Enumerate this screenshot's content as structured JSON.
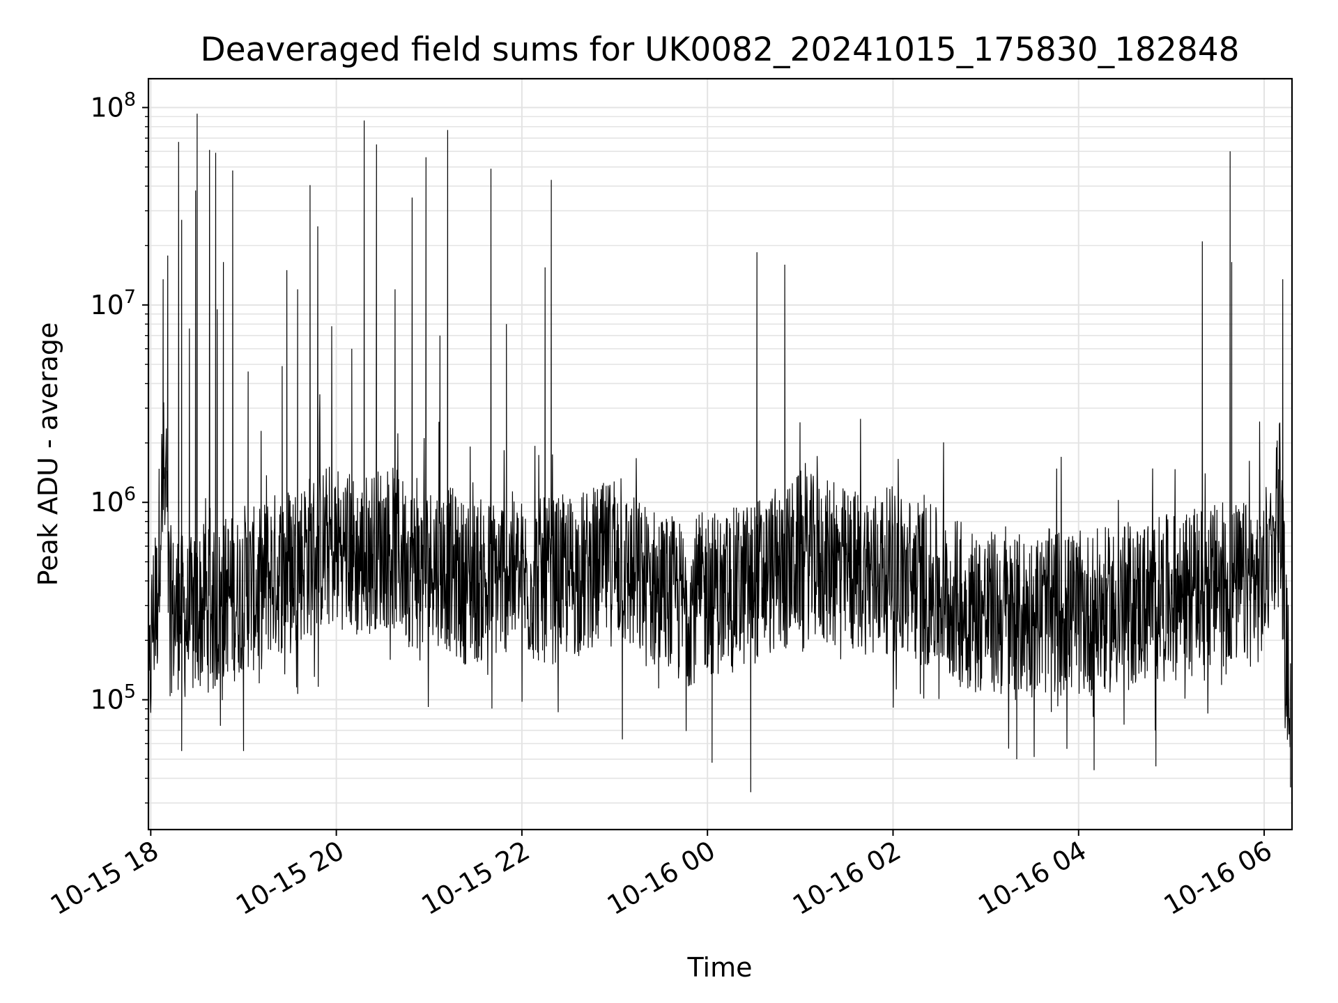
{
  "chart_data": {
    "type": "line",
    "title": "Deaveraged field sums for UK0082_20241015_175830_182848",
    "xlabel": "Time",
    "ylabel": "Peak ADU - average",
    "yscale": "log",
    "xlim": [
      "2024-10-15 17:58:30",
      "2024-10-16 06:18:00"
    ],
    "ylim": [
      22000,
      140000000
    ],
    "grid": true,
    "x_tick_labels": [
      "10-15 18",
      "10-15 20",
      "10-15 22",
      "10-16 00",
      "10-16 02",
      "10-16 04",
      "10-16 06"
    ],
    "y_tick_labels": [
      {
        "base": "10",
        "exp": "8"
      },
      {
        "base": "10",
        "exp": "7"
      },
      {
        "base": "10",
        "exp": "6"
      },
      {
        "base": "10",
        "exp": "5"
      }
    ],
    "line_color": "#000000",
    "series": [
      {
        "x": [
          "2024-10-15 17:58:30",
          "2024-10-15 18:01:00",
          "2024-10-15 18:04:00",
          "2024-10-15 18:06:00",
          "2024-10-15 18:08:00",
          "2024-10-15 18:10:00",
          "2024-10-15 18:12:00",
          "2024-10-15 18:14:00",
          "2024-10-15 18:16:00",
          "2024-10-15 18:17:00",
          "2024-10-15 18:18:00",
          "2024-10-15 18:20:00",
          "2024-10-15 18:24:00",
          "2024-10-15 18:28:00",
          "2024-10-15 18:30:00",
          "2024-10-15 18:35:00",
          "2024-10-15 18:40:00",
          "2024-10-15 18:45:00",
          "2024-10-15 18:50:00",
          "2024-10-15 18:55:00",
          "2024-10-15 19:00:00",
          "2024-10-15 19:10:00",
          "2024-10-15 19:15:00",
          "2024-10-15 19:25:00",
          "2024-10-15 19:32:00",
          "2024-10-15 19:35:00",
          "2024-10-15 19:45:00",
          "2024-10-15 19:55:00",
          "2024-10-15 20:05:00",
          "2024-10-15 20:15:00",
          "2024-10-15 20:20:00",
          "2024-10-15 20:25:00",
          "2024-10-15 20:35:00",
          "2024-10-15 20:45:00",
          "2024-10-15 20:55:00",
          "2024-10-15 21:05:00",
          "2024-10-15 21:15:00",
          "2024-10-15 21:20:00",
          "2024-10-15 21:30:00",
          "2024-10-15 21:40:00",
          "2024-10-15 21:50:00",
          "2024-10-15 22:00:00",
          "2024-10-15 22:10:00",
          "2024-10-15 22:20:00",
          "2024-10-15 22:30:00",
          "2024-10-15 22:45:00",
          "2024-10-15 23:00:00",
          "2024-10-15 23:15:00",
          "2024-10-15 23:30:00",
          "2024-10-15 23:45:00",
          "2024-10-16 00:00:00",
          "2024-10-16 00:15:00",
          "2024-10-16 00:30:00",
          "2024-10-16 00:45:00",
          "2024-10-16 00:50:00",
          "2024-10-16 01:00:00",
          "2024-10-16 01:15:00",
          "2024-10-16 01:30:00",
          "2024-10-16 01:45:00",
          "2024-10-16 02:00:00",
          "2024-10-16 02:15:00",
          "2024-10-16 02:30:00",
          "2024-10-16 02:45:00",
          "2024-10-16 03:00:00",
          "2024-10-16 03:15:00",
          "2024-10-16 03:30:00",
          "2024-10-16 03:45:00",
          "2024-10-16 04:00:00",
          "2024-10-16 04:15:00",
          "2024-10-16 04:30:00",
          "2024-10-16 04:45:00",
          "2024-10-16 05:00:00",
          "2024-10-16 05:15:00",
          "2024-10-16 05:30:00",
          "2024-10-16 05:45:00",
          "2024-10-16 06:00:00",
          "2024-10-16 06:10:00",
          "2024-10-16 06:14:00",
          "2024-10-16 06:17:00"
        ],
        "y": [
          80000,
          250000,
          300000,
          850000,
          1400000,
          1000000,
          300000,
          280000,
          260000,
          280000,
          300000,
          270000,
          250000,
          260000,
          280000,
          300000,
          270000,
          300000,
          350000,
          320000,
          380000,
          350000,
          420000,
          450000,
          500000,
          500000,
          550000,
          600000,
          600000,
          500000,
          550000,
          600000,
          600000,
          500000,
          450000,
          500000,
          450000,
          400000,
          400000,
          400000,
          450000,
          400000,
          400000,
          400000,
          420000,
          450000,
          500000,
          400000,
          350000,
          300000,
          350000,
          350000,
          400000,
          450000,
          450000,
          550000,
          500000,
          450000,
          450000,
          450000,
          400000,
          350000,
          300000,
          280000,
          260000,
          270000,
          280000,
          270000,
          280000,
          300000,
          320000,
          330000,
          350000,
          380000,
          380000,
          400000,
          1200000,
          200000,
          80000
        ]
      }
    ],
    "spikes": [
      {
        "x": "2024-10-15 18:08:00",
        "y": 13500000
      },
      {
        "x": "2024-10-15 18:11:00",
        "y": 17800000
      },
      {
        "x": "2024-10-15 18:18:00",
        "y": 67000000
      },
      {
        "x": "2024-10-15 18:20:00",
        "y": 27000000
      },
      {
        "x": "2024-10-15 18:25:00",
        "y": 7600000
      },
      {
        "x": "2024-10-15 18:29:00",
        "y": 38000000
      },
      {
        "x": "2024-10-15 18:30:00",
        "y": 93000000
      },
      {
        "x": "2024-10-15 18:38:00",
        "y": 61000000
      },
      {
        "x": "2024-10-15 18:42:00",
        "y": 59000000
      },
      {
        "x": "2024-10-15 18:43:00",
        "y": 9500000
      },
      {
        "x": "2024-10-15 18:47:00",
        "y": 16500000
      },
      {
        "x": "2024-10-15 18:53:00",
        "y": 48000000
      },
      {
        "x": "2024-10-15 19:03:00",
        "y": 4600000
      },
      {
        "x": "2024-10-15 19:25:00",
        "y": 4900000
      },
      {
        "x": "2024-10-15 19:28:00",
        "y": 15000000
      },
      {
        "x": "2024-10-15 19:35:00",
        "y": 12000000
      },
      {
        "x": "2024-10-15 19:43:00",
        "y": 40500000
      },
      {
        "x": "2024-10-15 19:48:00",
        "y": 25000000
      },
      {
        "x": "2024-10-15 19:57:00",
        "y": 7800000
      },
      {
        "x": "2024-10-15 20:10:00",
        "y": 6000000
      },
      {
        "x": "2024-10-15 20:18:00",
        "y": 86000000
      },
      {
        "x": "2024-10-15 20:26:00",
        "y": 65000000
      },
      {
        "x": "2024-10-15 20:38:00",
        "y": 12000000
      },
      {
        "x": "2024-10-15 20:49:00",
        "y": 35000000
      },
      {
        "x": "2024-10-15 20:58:00",
        "y": 56000000
      },
      {
        "x": "2024-10-15 21:07:00",
        "y": 7000000
      },
      {
        "x": "2024-10-15 21:12:00",
        "y": 77000000
      },
      {
        "x": "2024-10-15 21:40:00",
        "y": 49000000
      },
      {
        "x": "2024-10-15 21:50:00",
        "y": 8000000
      },
      {
        "x": "2024-10-15 22:15:00",
        "y": 15500000
      },
      {
        "x": "2024-10-15 22:19:00",
        "y": 43000000
      },
      {
        "x": "2024-10-16 00:32:00",
        "y": 18500000
      },
      {
        "x": "2024-10-16 00:50:00",
        "y": 16000000
      },
      {
        "x": "2024-10-16 05:20:00",
        "y": 21000000
      },
      {
        "x": "2024-10-16 05:38:00",
        "y": 60000000
      },
      {
        "x": "2024-10-16 05:39:00",
        "y": 16500000
      },
      {
        "x": "2024-10-16 06:12:00",
        "y": 13500000
      }
    ],
    "dips": [
      {
        "x": "2024-10-15 18:20:00",
        "y": 55000
      },
      {
        "x": "2024-10-15 19:00:00",
        "y": 55000
      },
      {
        "x": "2024-10-15 23:05:00",
        "y": 63000
      },
      {
        "x": "2024-10-16 00:03:00",
        "y": 48000
      },
      {
        "x": "2024-10-16 00:28:00",
        "y": 34000
      },
      {
        "x": "2024-10-16 03:20:00",
        "y": 50000
      },
      {
        "x": "2024-10-16 04:10:00",
        "y": 44000
      },
      {
        "x": "2024-10-16 04:50:00",
        "y": 46000
      },
      {
        "x": "2024-10-16 06:17:00",
        "y": 36000
      }
    ]
  }
}
